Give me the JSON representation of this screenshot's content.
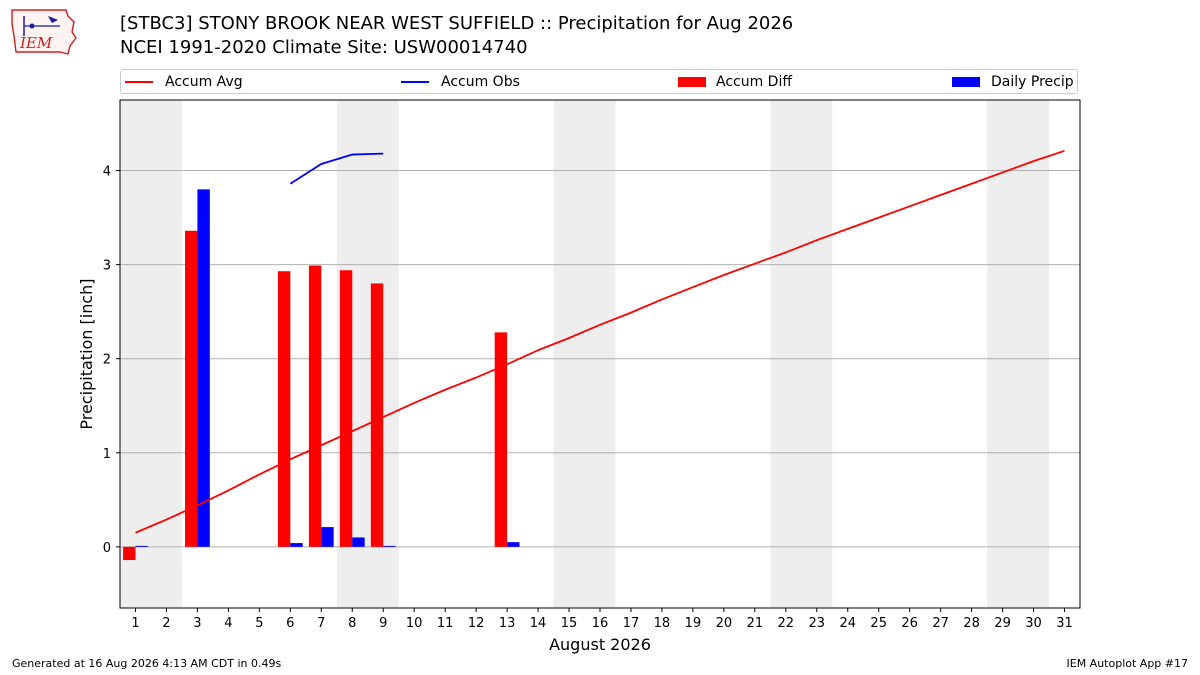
{
  "header": {
    "title_line1": "[STBC3] STONY BROOK NEAR WEST SUFFIELD :: Precipitation for Aug 2026",
    "title_line2": "NCEI 1991-2020 Climate Site: USW00014740"
  },
  "logo": {
    "text": "IEM",
    "color": "#d11f1f"
  },
  "footer": {
    "generated": "Generated at 16 Aug 2026 4:13 AM CDT in 0.49s",
    "app": "IEM Autoplot App #17"
  },
  "chart_data": {
    "type": "bar",
    "xlabel": "August 2026",
    "ylabel": "Precipitation [inch]",
    "x": [
      1,
      2,
      3,
      4,
      5,
      6,
      7,
      8,
      9,
      10,
      11,
      12,
      13,
      14,
      15,
      16,
      17,
      18,
      19,
      20,
      21,
      22,
      23,
      24,
      25,
      26,
      27,
      28,
      29,
      30,
      31
    ],
    "xticks": [
      "1",
      "2",
      "3",
      "4",
      "5",
      "6",
      "7",
      "8",
      "9",
      "10",
      "11",
      "12",
      "13",
      "14",
      "15",
      "16",
      "17",
      "18",
      "19",
      "20",
      "21",
      "22",
      "23",
      "24",
      "25",
      "26",
      "27",
      "28",
      "29",
      "30",
      "31"
    ],
    "xlim": [
      0.5,
      31.5
    ],
    "ylim": [
      -0.65,
      4.75
    ],
    "yticks": [
      0,
      1,
      2,
      3,
      4
    ],
    "yticklabels": [
      "0",
      "1",
      "2",
      "3",
      "4"
    ],
    "grid": "horizontal",
    "legend_position": "top",
    "weekend_shading": [
      [
        0.5,
        2.5
      ],
      [
        7.5,
        9.5
      ],
      [
        14.5,
        16.5
      ],
      [
        21.5,
        23.5
      ],
      [
        28.5,
        30.5
      ]
    ],
    "colors": {
      "accum_avg": "#ff0000",
      "accum_obs": "#0000ff",
      "accum_diff": "#ff0000",
      "daily_precip": "#0000ff",
      "shade": "#eeeeee",
      "grid": "#b0b0b0"
    },
    "series": [
      {
        "name": "Accum Avg",
        "kind": "line",
        "x": [
          1,
          2,
          3,
          4,
          5,
          6,
          7,
          8,
          9,
          10,
          11,
          12,
          13,
          14,
          15,
          16,
          17,
          18,
          19,
          20,
          21,
          22,
          23,
          24,
          25,
          26,
          27,
          28,
          29,
          30,
          31
        ],
        "values": [
          0.15,
          0.29,
          0.44,
          0.6,
          0.77,
          0.93,
          1.08,
          1.23,
          1.38,
          1.53,
          1.67,
          1.8,
          1.94,
          2.09,
          2.22,
          2.36,
          2.49,
          2.63,
          2.76,
          2.89,
          3.01,
          3.13,
          3.26,
          3.38,
          3.5,
          3.62,
          3.74,
          3.86,
          3.98,
          4.1,
          4.21
        ]
      },
      {
        "name": "Accum Obs",
        "kind": "line",
        "x": [
          6,
          7,
          8,
          9
        ],
        "values": [
          3.86,
          4.07,
          4.17,
          4.18
        ]
      },
      {
        "name": "Accum Diff",
        "kind": "bar",
        "x": [
          1,
          3,
          6,
          7,
          8,
          9,
          13
        ],
        "values": [
          -0.14,
          3.36,
          2.93,
          2.99,
          2.94,
          2.8,
          2.28
        ]
      },
      {
        "name": "Daily Precip",
        "kind": "bar",
        "x": [
          1,
          3,
          6,
          7,
          8,
          9,
          13
        ],
        "values": [
          0.01,
          3.8,
          0.04,
          0.21,
          0.1,
          0.01,
          0.05
        ]
      }
    ]
  }
}
